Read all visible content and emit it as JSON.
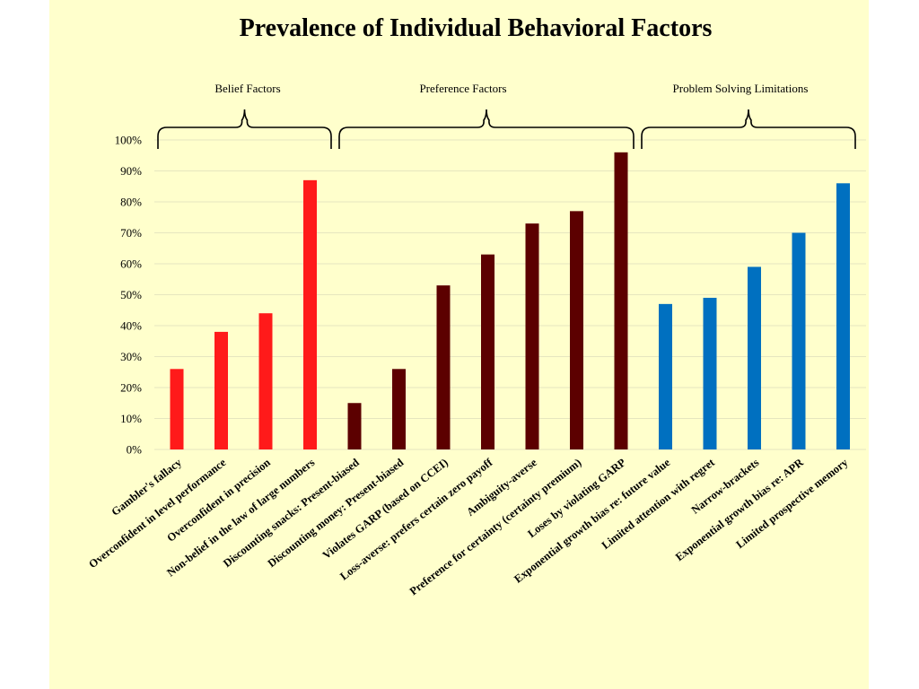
{
  "chart_data": {
    "type": "bar",
    "title": "Prevalence of Individual Behavioral Factors",
    "xlabel": "",
    "ylabel": "",
    "ylim": [
      0,
      100
    ],
    "y_ticks": [
      "0%",
      "10%",
      "20%",
      "30%",
      "40%",
      "50%",
      "60%",
      "70%",
      "80%",
      "90%",
      "100%"
    ],
    "grid": true,
    "legend": "none",
    "groups": [
      {
        "name": "Belief Factors",
        "color": "#ff1a1a",
        "categories": [
          "Gambler's fallacy",
          "Overconfident in level performance",
          "Overconfident in precision",
          "Non-belief in the law of large numbers"
        ],
        "values": [
          26,
          38,
          44,
          87
        ]
      },
      {
        "name": "Preference Factors",
        "color": "#5c0000",
        "categories": [
          "Discounting snacks: Present-biased",
          "Discounting money: Present-biased",
          "Violates GARP (based on CCEI)",
          "Loss-averse: prefers certain zero payoff",
          "Ambiguity-averse",
          "Preference for certainty (certainty premium)",
          "Loses by violating GARP"
        ],
        "values": [
          15,
          26,
          53,
          63,
          73,
          77,
          96
        ]
      },
      {
        "name": "Problem Solving Limitations",
        "color": "#0070c0",
        "categories": [
          "Exponential growth bias re: future value",
          "Limited attention with regret",
          "Narrow-brackets",
          "Exponential growth bias re: APR",
          "Limited prospective memory"
        ],
        "values": [
          47,
          49,
          59,
          70,
          86
        ]
      }
    ]
  }
}
